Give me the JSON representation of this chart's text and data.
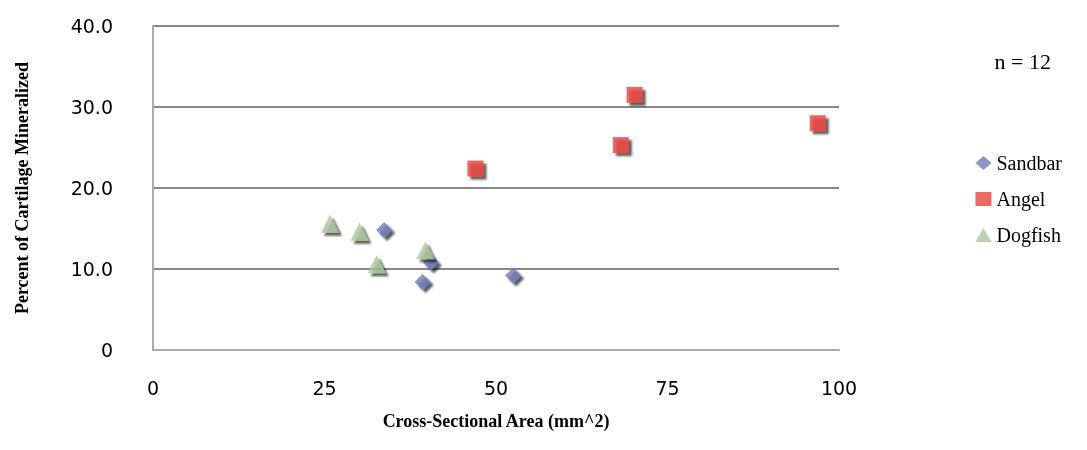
{
  "chart_data": {
    "type": "scatter",
    "xlabel": "Cross-Sectional Area (mm^2)",
    "ylabel": "Percent of Cartilage Mineralized",
    "xlim": [
      0,
      100
    ],
    "xticks": [
      0,
      25,
      50,
      75,
      100
    ],
    "ylim": [
      0,
      40
    ],
    "yticks": [
      0,
      {
        "value": 10,
        "label": "10.0"
      },
      {
        "value": 20,
        "label": "20.0"
      },
      {
        "value": 30,
        "label": "30.0"
      },
      {
        "value": 40,
        "label": "40.0"
      }
    ],
    "grid": "y",
    "legend": "right",
    "annotations": [
      "n = 12"
    ],
    "series": [
      {
        "name": "Sandbar",
        "color": "#6e7bb8",
        "marker": "diamond",
        "x": [
          33.7,
          40.5,
          39.3,
          52.5
        ],
        "values": [
          14.8,
          10.8,
          8.4,
          9.2
        ]
      },
      {
        "name": "Angel",
        "color": "#e8453c",
        "marker": "square",
        "x": [
          70.2,
          68.2,
          47.0,
          96.9
        ],
        "values": [
          31.5,
          25.3,
          22.4,
          28.0
        ]
      },
      {
        "name": "Dogfish",
        "color": "#a9c79a",
        "marker": "triangle",
        "x": [
          25.8,
          30.1,
          32.6,
          39.7
        ],
        "values": [
          15.6,
          14.6,
          10.6,
          12.3
        ]
      }
    ]
  }
}
